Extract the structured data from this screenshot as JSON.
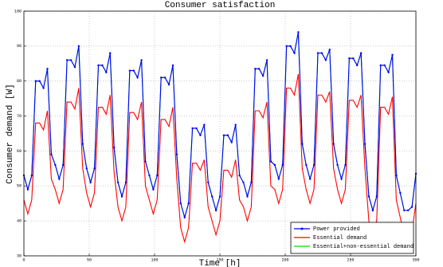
{
  "chart_data": {
    "type": "line",
    "title": "Consumer satisfaction",
    "x_label": "Time [h]",
    "y_label": "Consumer demand [W]",
    "x": [
      0,
      3,
      6,
      9,
      12,
      15,
      18,
      21,
      24,
      27,
      30,
      33,
      36,
      39,
      42,
      45,
      48,
      51,
      54,
      57,
      60,
      63,
      66,
      69,
      72,
      75,
      78,
      81,
      84,
      87,
      90,
      93,
      96,
      99,
      102,
      105,
      108,
      111,
      114,
      117,
      120,
      123,
      126,
      129,
      132,
      135,
      138,
      141,
      144,
      147,
      150,
      153,
      156,
      159,
      162,
      165,
      168,
      171,
      174,
      177,
      180,
      183,
      186,
      189,
      192,
      195,
      198,
      201,
      204,
      207,
      210,
      213,
      216,
      219,
      222,
      225,
      228,
      231,
      234,
      237,
      240,
      243,
      246,
      249,
      252,
      255,
      258,
      261,
      264,
      267,
      270,
      273,
      276,
      279,
      282,
      285,
      288,
      291,
      294,
      297,
      300
    ],
    "series": [
      {
        "name": "Power provided",
        "color": "#0000ff",
        "marker": true,
        "values": [
          53,
          49,
          53,
          80,
          80,
          78,
          83.5,
          59,
          56,
          52,
          56,
          86,
          86,
          84,
          90,
          62,
          55,
          51,
          55,
          84.5,
          84.5,
          82.5,
          88,
          61,
          51,
          47,
          51,
          83,
          83,
          81,
          86,
          57,
          53,
          49,
          53,
          81,
          81,
          79,
          84.5,
          59,
          45,
          41,
          45,
          66.5,
          66.5,
          64.5,
          67.5,
          51,
          47,
          43,
          47,
          64.5,
          64.5,
          62.5,
          67.5,
          53,
          51,
          47,
          51,
          83.5,
          83.5,
          81.5,
          86,
          57,
          56,
          52,
          56,
          90,
          90,
          88,
          94,
          62,
          56,
          52,
          56,
          88,
          88,
          86,
          89,
          62,
          56,
          52,
          56,
          86.5,
          86.5,
          84.5,
          88,
          62,
          47,
          43,
          47,
          84.5,
          84.5,
          82.5,
          87.5,
          53,
          48,
          43,
          43,
          44,
          53.5
        ]
      },
      {
        "name": "Essential demand",
        "color": "#ff0000",
        "marker": false,
        "values": [
          46,
          42,
          46,
          68,
          68,
          66,
          71.5,
          52,
          49,
          45,
          49,
          74,
          74,
          72,
          78,
          55,
          48,
          44,
          48,
          72.5,
          72.5,
          70.5,
          76,
          54,
          44,
          40,
          44,
          71,
          71,
          69,
          74,
          50,
          46,
          42,
          46,
          69,
          69,
          67,
          72.5,
          52,
          38,
          34,
          38,
          56.5,
          56.5,
          54.5,
          57.5,
          44,
          40,
          36,
          40,
          54.5,
          54.5,
          52.5,
          57.5,
          46,
          44,
          40,
          44,
          71.5,
          71.5,
          69.5,
          74,
          50,
          49,
          45,
          49,
          78,
          78,
          76,
          82,
          55,
          49,
          45,
          49,
          76,
          76,
          74,
          77,
          55,
          49,
          45,
          49,
          74.5,
          74.5,
          72.5,
          76,
          55,
          40,
          36,
          40,
          72.5,
          72.5,
          70.5,
          75.5,
          46,
          41,
          36,
          36,
          37,
          45
        ]
      },
      {
        "name": "Essential+non-essential demand",
        "color": "#00dd00",
        "marker": false,
        "values": [
          53,
          49,
          53,
          80,
          80,
          78,
          83.5,
          59,
          56,
          52,
          56,
          86,
          86,
          84,
          90,
          62,
          55,
          51,
          55,
          84.5,
          84.5,
          82.5,
          88,
          61,
          51,
          47,
          51,
          83,
          83,
          81,
          86,
          57,
          53,
          49,
          53,
          81,
          81,
          79,
          84.5,
          59,
          45,
          41,
          45,
          66.5,
          66.5,
          64.5,
          67.5,
          51,
          47,
          43,
          47,
          64.5,
          64.5,
          62.5,
          67.5,
          53,
          51,
          47,
          51,
          83.5,
          83.5,
          81.5,
          86,
          57,
          56,
          52,
          56,
          90,
          90,
          88,
          94,
          62,
          56,
          52,
          56,
          88,
          88,
          86,
          89,
          62,
          56,
          52,
          56,
          86.5,
          86.5,
          84.5,
          88,
          62,
          47,
          43,
          47,
          84.5,
          84.5,
          82.5,
          87.5,
          53,
          48,
          43,
          43,
          44,
          53.5
        ]
      }
    ],
    "xlim": [
      0,
      300
    ],
    "xticks": [
      0,
      50,
      100,
      150,
      200,
      250,
      300
    ],
    "ylim": [
      30,
      100
    ],
    "yticks": [
      30,
      40,
      50,
      60,
      70,
      80,
      90,
      100
    ],
    "grid": true,
    "legend": "lower right"
  }
}
